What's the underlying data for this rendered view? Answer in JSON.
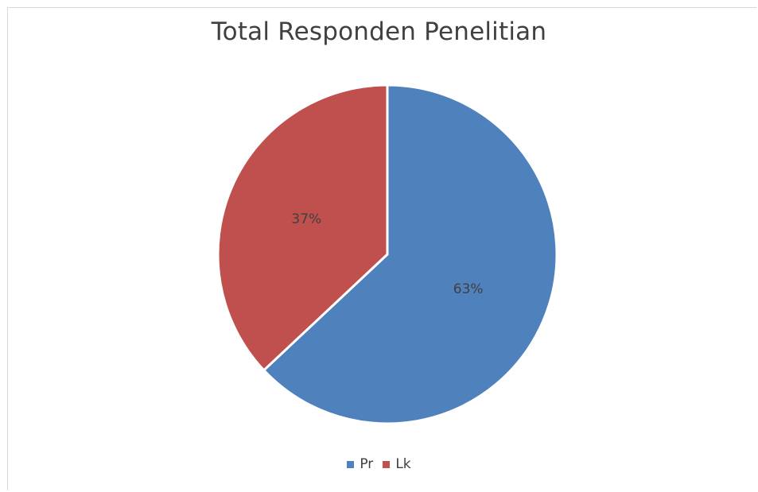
{
  "chart_data": {
    "type": "pie",
    "title": "Total Responden Penelitian",
    "categories": [
      "Pr",
      "Lk"
    ],
    "values": [
      63,
      37
    ],
    "data_labels": [
      "63%",
      "37%"
    ],
    "colors": [
      "#4f81bd",
      "#c0504d"
    ],
    "legend": "bottom",
    "start_angle_deg": 0,
    "direction": "clockwise"
  }
}
